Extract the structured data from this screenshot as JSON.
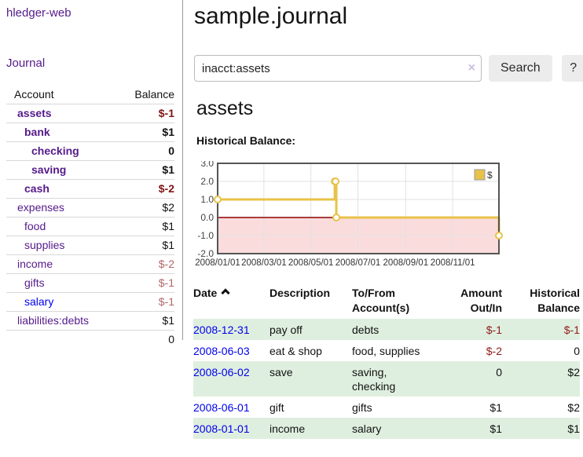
{
  "sidebar": {
    "brand": "hledger-web",
    "nav_journal": "Journal",
    "table": {
      "account_header": "Account",
      "balance_header": "Balance",
      "rows": [
        {
          "account": "assets",
          "balance": "$-1",
          "depth": 1,
          "matched": true,
          "balance_tone": "neg-strong"
        },
        {
          "account": "bank",
          "balance": "$1",
          "depth": 2,
          "matched": true,
          "balance_tone": "pos"
        },
        {
          "account": "checking",
          "balance": "0",
          "depth": 3,
          "matched": true,
          "balance_tone": "pos"
        },
        {
          "account": "saving",
          "balance": "$1",
          "depth": 3,
          "matched": true,
          "balance_tone": "pos"
        },
        {
          "account": "cash",
          "balance": "$-2",
          "depth": 2,
          "matched": true,
          "balance_tone": "neg-strong"
        },
        {
          "account": "expenses",
          "balance": "$2",
          "depth": 1,
          "matched": false,
          "balance_tone": "pos"
        },
        {
          "account": "food",
          "balance": "$1",
          "depth": 2,
          "matched": false,
          "balance_tone": "pos"
        },
        {
          "account": "supplies",
          "balance": "$1",
          "depth": 2,
          "matched": false,
          "balance_tone": "pos"
        },
        {
          "account": "income",
          "balance": "$-2",
          "depth": 1,
          "matched": false,
          "balance_tone": "neg-soft"
        },
        {
          "account": "gifts",
          "balance": "$-1",
          "depth": 2,
          "matched": false,
          "balance_tone": "neg-soft"
        },
        {
          "account": "salary",
          "balance": "$-1",
          "depth": 2,
          "matched": false,
          "balance_tone": "neg-soft",
          "link_tone": "unvisited"
        },
        {
          "account": "liabilities:debts",
          "balance": "$1",
          "depth": 1,
          "matched": false,
          "balance_tone": "pos"
        }
      ],
      "total": "0"
    }
  },
  "main": {
    "title": "sample.journal",
    "search": {
      "value": "inacct:assets",
      "clear_icon": "×",
      "button_label": "Search",
      "help_label": "?"
    },
    "account_heading": "assets",
    "chart_label": "Historical Balance:"
  },
  "chart_data": {
    "type": "line",
    "step": true,
    "title": "Historical Balance of assets",
    "x_start": "2008-01-01",
    "x_end": "2008-12-31",
    "ylim": [
      -2,
      3
    ],
    "yticks": [
      "3.0",
      "2.0",
      "1.0",
      "0.0",
      "-1.0",
      "-2.0"
    ],
    "xticks": [
      {
        "label": "2008/01/01",
        "date": "2008-01-01"
      },
      {
        "label": "2008/03/01",
        "date": "2008-03-01"
      },
      {
        "label": "2008/05/01",
        "date": "2008-05-01"
      },
      {
        "label": "2008/07/01",
        "date": "2008-07-01"
      },
      {
        "label": "2008/09/01",
        "date": "2008-09-01"
      },
      {
        "label": "2008/11/01",
        "date": "2008-11-01"
      }
    ],
    "series": [
      {
        "name": "$",
        "color": "#e8c24a",
        "points": [
          {
            "date": "2008-01-01",
            "value": 1
          },
          {
            "date": "2008-06-01",
            "value": 2
          },
          {
            "date": "2008-06-02",
            "value": 2
          },
          {
            "date": "2008-06-03",
            "value": 0
          },
          {
            "date": "2008-12-31",
            "value": -1
          }
        ]
      }
    ],
    "legend_position": "top-right",
    "grid": true,
    "grid_color": "#e2e2e2",
    "border_color": "#555555",
    "negative_region_color": "#fbdcdc",
    "zero_line_color": "#8b0000",
    "marker_fill": "#ffffff"
  },
  "register": {
    "headers": [
      "Date",
      "Description",
      "To/From Account(s)",
      "Amount Out/In",
      "Historical Balance"
    ],
    "sort_icon": "chevron-up",
    "rows": [
      {
        "date": "2008-12-31",
        "description": "pay off",
        "accounts": "debts",
        "amount": "$-1",
        "amount_tone": "neg",
        "balance": "$-1",
        "balance_tone": "neg"
      },
      {
        "date": "2008-06-03",
        "description": "eat & shop",
        "accounts": "food, supplies",
        "amount": "$-2",
        "amount_tone": "neg",
        "balance": "0",
        "balance_tone": "pos"
      },
      {
        "date": "2008-06-02",
        "description": "save",
        "accounts": "saving, checking",
        "amount": "0",
        "amount_tone": "pos",
        "balance": "$2",
        "balance_tone": "pos"
      },
      {
        "date": "2008-06-01",
        "description": "gift",
        "accounts": "gifts",
        "amount": "$1",
        "amount_tone": "pos",
        "balance": "$2",
        "balance_tone": "pos"
      },
      {
        "date": "2008-01-01",
        "description": "income",
        "accounts": "salary",
        "amount": "$1",
        "amount_tone": "pos",
        "balance": "$1",
        "balance_tone": "pos"
      }
    ]
  },
  "colors": {
    "link_visited_purple": "#551a8b",
    "link_blue": "#0000ee",
    "negative_red": "#8f1b1b",
    "negative_red_soft": "#b26767",
    "row_stripe_green": "#dfefdf",
    "chart_line_gold": "#e8c24a",
    "button_gray": "#ececec"
  }
}
